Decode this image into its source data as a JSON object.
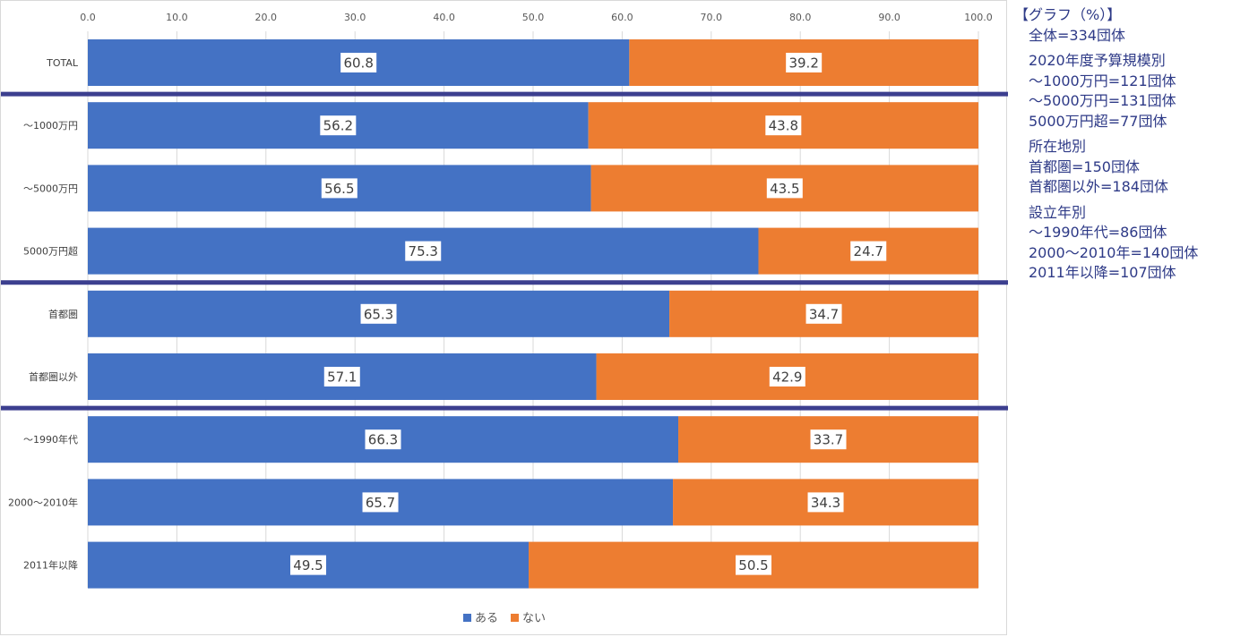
{
  "chart_data": {
    "type": "bar",
    "orientation": "horizontal",
    "stacked": true,
    "categories": [
      "TOTAL",
      "～1000万円",
      "～5000万円",
      "5000万円超",
      "首都圏",
      "首都圏以外",
      "～1990年代",
      "2000～2010年",
      "2011年以降"
    ],
    "series": [
      {
        "name": "ある",
        "color": "#4472c4",
        "values": [
          60.8,
          56.2,
          56.5,
          75.3,
          65.3,
          57.1,
          66.3,
          65.7,
          49.5
        ]
      },
      {
        "name": "ない",
        "color": "#ed7d31",
        "values": [
          39.2,
          43.8,
          43.5,
          24.7,
          34.7,
          42.9,
          33.7,
          34.3,
          50.5
        ]
      }
    ],
    "xlim": [
      0,
      100
    ],
    "xticks": [
      "0.0",
      "10.0",
      "20.0",
      "30.0",
      "40.0",
      "50.0",
      "60.0",
      "70.0",
      "80.0",
      "90.0",
      "100.0"
    ],
    "group_dividers_after": [
      "TOTAL",
      "5000万円超",
      "首都圏以外"
    ],
    "divider_color": "#3c3f8f",
    "gridlines": true,
    "legend_position": "bottom",
    "data_labels": true
  },
  "notes": {
    "title": "【グラフ（%）】",
    "total_line": "全体=334団体",
    "groups": [
      {
        "heading": "2020年度予算規模別",
        "lines": [
          "～1000万円=121団体",
          "～5000万円=131団体",
          "5000万円超=77団体"
        ]
      },
      {
        "heading": "所在地別",
        "lines": [
          "首都圏=150団体",
          "首都圏以外=184団体"
        ]
      },
      {
        "heading": "設立年別",
        "lines": [
          "～1990年代=86団体",
          "2000～2010年=140団体",
          "2011年以降=107団体"
        ]
      }
    ]
  }
}
